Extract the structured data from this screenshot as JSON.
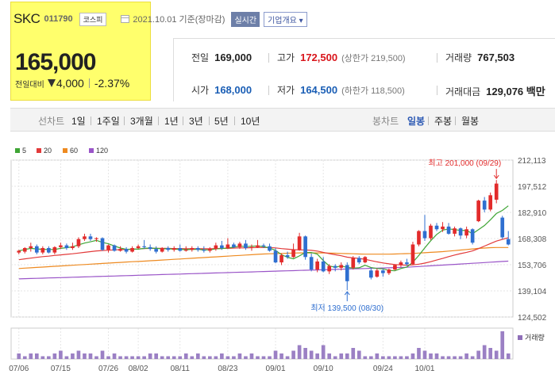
{
  "stock": {
    "name": "SKC",
    "code": "011790",
    "market": "코스피",
    "date": "2021.10.01 기준(장마감)",
    "realtime": "실시간",
    "overview": "기업개요 ▾",
    "price": "165,000",
    "prev_label": "전일대비",
    "change": "4,000",
    "change_pct": "-2.37%"
  },
  "stats": {
    "prev_close": {
      "label": "전일",
      "value": "169,000"
    },
    "high": {
      "label": "고가",
      "value": "172,500",
      "sub": "(상한가 219,500)"
    },
    "volume": {
      "label": "거래량",
      "value": "767,503"
    },
    "open": {
      "label": "시가",
      "value": "168,000"
    },
    "low": {
      "label": "저가",
      "value": "164,500",
      "sub": "(하한가 118,500)"
    },
    "amount": {
      "label": "거래대금",
      "value": "129,076 백만"
    }
  },
  "tabs": {
    "line_label": "선차트",
    "line": [
      "1일",
      "1주일",
      "3개월",
      "1년",
      "3년",
      "5년",
      "10년"
    ],
    "candle_label": "봉차트",
    "candle": [
      "일봉",
      "주봉",
      "월봉"
    ],
    "active_candle": "일봉"
  },
  "legend": [
    {
      "label": "5",
      "color": "#3fa535"
    },
    {
      "label": "20",
      "color": "#e23a3a"
    },
    {
      "label": "60",
      "color": "#ee8a20"
    },
    {
      "label": "120",
      "color": "#9a55c8"
    }
  ],
  "colors": {
    "up": "#e22b2b",
    "down": "#2f6fd0"
  },
  "annotations": {
    "high": "최고 201,000 (09/29)",
    "low": "최저 139,500 (08/30)",
    "volume_label": "거래량"
  },
  "chart_data": {
    "type": "candlestick",
    "ylim": [
      124502,
      212113
    ],
    "yticks": [
      "212,113",
      "197,512",
      "182,910",
      "168,308",
      "153,706",
      "139,104",
      "124,502"
    ],
    "xticks": [
      "07/06",
      "07/15",
      "07/26",
      "08/02",
      "08/11",
      "08/23",
      "09/01",
      "09/10",
      "09/24",
      "10/01"
    ],
    "candles": [
      {
        "o": 160500,
        "c": 161500,
        "h": 162000,
        "l": 159500
      },
      {
        "o": 161000,
        "c": 163000,
        "h": 163500,
        "l": 160000
      },
      {
        "o": 163000,
        "c": 164000,
        "h": 166000,
        "l": 161000
      },
      {
        "o": 164000,
        "c": 160500,
        "h": 165000,
        "l": 159500
      },
      {
        "o": 160500,
        "c": 163000,
        "h": 164000,
        "l": 159500
      },
      {
        "o": 163000,
        "c": 160500,
        "h": 164000,
        "l": 160000
      },
      {
        "o": 160500,
        "c": 163500,
        "h": 164000,
        "l": 159500
      },
      {
        "o": 163500,
        "c": 164500,
        "h": 166000,
        "l": 162500
      },
      {
        "o": 164500,
        "c": 163000,
        "h": 165500,
        "l": 162000
      },
      {
        "o": 163000,
        "c": 164000,
        "h": 166000,
        "l": 162000
      },
      {
        "o": 164000,
        "c": 168000,
        "h": 169000,
        "l": 163000
      },
      {
        "o": 168000,
        "c": 169500,
        "h": 171000,
        "l": 167000
      },
      {
        "o": 169500,
        "c": 168000,
        "h": 171000,
        "l": 167000
      },
      {
        "o": 168000,
        "c": 168500,
        "h": 169000,
        "l": 166500
      },
      {
        "o": 168500,
        "c": 162000,
        "h": 169000,
        "l": 161500
      },
      {
        "o": 162000,
        "c": 164500,
        "h": 165000,
        "l": 160500
      },
      {
        "o": 164500,
        "c": 161500,
        "h": 165000,
        "l": 161000
      },
      {
        "o": 161500,
        "c": 162500,
        "h": 164000,
        "l": 161000
      },
      {
        "o": 162500,
        "c": 161000,
        "h": 163500,
        "l": 160000
      },
      {
        "o": 161000,
        "c": 163000,
        "h": 164000,
        "l": 160500
      },
      {
        "o": 163000,
        "c": 164000,
        "h": 165000,
        "l": 162500
      },
      {
        "o": 164000,
        "c": 163500,
        "h": 167500,
        "l": 162500
      },
      {
        "o": 163500,
        "c": 162500,
        "h": 165000,
        "l": 161500
      },
      {
        "o": 162500,
        "c": 161000,
        "h": 164000,
        "l": 160000
      },
      {
        "o": 161000,
        "c": 163000,
        "h": 163500,
        "l": 160500
      },
      {
        "o": 163000,
        "c": 162000,
        "h": 164000,
        "l": 161000
      },
      {
        "o": 162000,
        "c": 163000,
        "h": 164000,
        "l": 161000
      },
      {
        "o": 163000,
        "c": 161500,
        "h": 165000,
        "l": 161000
      },
      {
        "o": 161500,
        "c": 162000,
        "h": 164000,
        "l": 161000
      },
      {
        "o": 162000,
        "c": 163000,
        "h": 164000,
        "l": 161000
      },
      {
        "o": 163000,
        "c": 162000,
        "h": 164000,
        "l": 161000
      },
      {
        "o": 162000,
        "c": 161500,
        "h": 164000,
        "l": 160500
      },
      {
        "o": 161500,
        "c": 162500,
        "h": 163500,
        "l": 160500
      },
      {
        "o": 162500,
        "c": 164500,
        "h": 166000,
        "l": 161500
      },
      {
        "o": 164500,
        "c": 163000,
        "h": 167000,
        "l": 162000
      },
      {
        "o": 163000,
        "c": 165000,
        "h": 168500,
        "l": 162500
      },
      {
        "o": 165000,
        "c": 163500,
        "h": 166000,
        "l": 163000
      },
      {
        "o": 163500,
        "c": 165500,
        "h": 166500,
        "l": 162500
      },
      {
        "o": 165500,
        "c": 163000,
        "h": 167500,
        "l": 162000
      },
      {
        "o": 163000,
        "c": 163500,
        "h": 165000,
        "l": 161500
      },
      {
        "o": 163500,
        "c": 164500,
        "h": 167500,
        "l": 163000
      },
      {
        "o": 164500,
        "c": 164000,
        "h": 165500,
        "l": 163000
      },
      {
        "o": 164000,
        "c": 161500,
        "h": 165500,
        "l": 161000
      },
      {
        "o": 161500,
        "c": 155000,
        "h": 163000,
        "l": 154500
      },
      {
        "o": 155000,
        "c": 159000,
        "h": 160000,
        "l": 153500
      },
      {
        "o": 159000,
        "c": 158000,
        "h": 161000,
        "l": 157000
      },
      {
        "o": 158000,
        "c": 162000,
        "h": 165500,
        "l": 157500
      },
      {
        "o": 162000,
        "c": 169500,
        "h": 171500,
        "l": 161500
      },
      {
        "o": 169500,
        "c": 158000,
        "h": 170000,
        "l": 156500
      },
      {
        "o": 158000,
        "c": 151000,
        "h": 160000,
        "l": 150000
      },
      {
        "o": 151000,
        "c": 155500,
        "h": 157000,
        "l": 149500
      },
      {
        "o": 155500,
        "c": 150000,
        "h": 158000,
        "l": 149500
      },
      {
        "o": 150000,
        "c": 153000,
        "h": 154000,
        "l": 148500
      },
      {
        "o": 153000,
        "c": 152000,
        "h": 154000,
        "l": 150000
      },
      {
        "o": 152000,
        "c": 153500,
        "h": 155000,
        "l": 150500
      },
      {
        "o": 153500,
        "c": 144500,
        "h": 155000,
        "l": 139500
      },
      {
        "o": 152000,
        "c": 157500,
        "h": 158500,
        "l": 151000
      },
      {
        "o": 157500,
        "c": 155000,
        "h": 158500,
        "l": 154000
      },
      {
        "o": 155000,
        "c": 158000,
        "h": 158500,
        "l": 154500
      },
      {
        "o": 150500,
        "c": 146500,
        "h": 152000,
        "l": 145500
      },
      {
        "o": 147000,
        "c": 150500,
        "h": 151500,
        "l": 146500
      },
      {
        "o": 150500,
        "c": 149000,
        "h": 151500,
        "l": 147000
      },
      {
        "o": 149000,
        "c": 151000,
        "h": 151500,
        "l": 148000
      },
      {
        "o": 151000,
        "c": 153500,
        "h": 154000,
        "l": 150500
      },
      {
        "o": 153500,
        "c": 155000,
        "h": 156000,
        "l": 152500
      },
      {
        "o": 155000,
        "c": 154000,
        "h": 157000,
        "l": 153000
      },
      {
        "o": 154000,
        "c": 165000,
        "h": 166500,
        "l": 153500
      },
      {
        "o": 165000,
        "c": 172500,
        "h": 173000,
        "l": 164000
      },
      {
        "o": 172500,
        "c": 168500,
        "h": 181500,
        "l": 167000
      },
      {
        "o": 168500,
        "c": 175500,
        "h": 176500,
        "l": 167500
      },
      {
        "o": 175500,
        "c": 173500,
        "h": 177000,
        "l": 172500
      },
      {
        "o": 173500,
        "c": 175000,
        "h": 177500,
        "l": 172000
      },
      {
        "o": 175000,
        "c": 171000,
        "h": 177000,
        "l": 170500
      },
      {
        "o": 171000,
        "c": 174000,
        "h": 175000,
        "l": 169500
      },
      {
        "o": 174000,
        "c": 170000,
        "h": 174500,
        "l": 168000
      },
      {
        "o": 170000,
        "c": 173500,
        "h": 175000,
        "l": 168500
      },
      {
        "o": 173500,
        "c": 166000,
        "h": 174000,
        "l": 165000
      },
      {
        "o": 178000,
        "c": 189500,
        "h": 190000,
        "l": 177500
      },
      {
        "o": 189500,
        "c": 184500,
        "h": 191500,
        "l": 183000
      },
      {
        "o": 184500,
        "c": 192500,
        "h": 194000,
        "l": 183500
      },
      {
        "o": 190000,
        "c": 199000,
        "h": 201000,
        "l": 188000
      },
      {
        "o": 180000,
        "c": 169000,
        "h": 181000,
        "l": 168000
      },
      {
        "o": 168000,
        "c": 165000,
        "h": 172500,
        "l": 164500
      }
    ],
    "ma5": [
      161500,
      162200,
      162800,
      162500,
      162300,
      162200,
      162200,
      162800,
      163200,
      163700,
      164800,
      165800,
      166500,
      167300,
      166200,
      165400,
      164200,
      163000,
      162300,
      162400,
      162400,
      162800,
      163000,
      162800,
      162600,
      162600,
      162400,
      162300,
      162100,
      162300,
      162300,
      162000,
      162000,
      162600,
      162700,
      163100,
      163500,
      164200,
      163800,
      164000,
      164200,
      163800,
      163000,
      161700,
      159300,
      157800,
      157000,
      158600,
      160500,
      160500,
      159600,
      156000,
      153000,
      152300,
      153000,
      152200,
      151800,
      152000,
      153400,
      152100,
      151600,
      151400,
      150500,
      150300,
      151600,
      152400,
      155100,
      158900,
      163100,
      167100,
      170600,
      173000,
      173700,
      173300,
      172800,
      172900,
      171000,
      173300,
      175600,
      178800,
      182300,
      184000,
      186600
    ],
    "ma20": [
      156500,
      157000,
      157400,
      157800,
      158200,
      158500,
      158900,
      159200,
      159500,
      159800,
      160200,
      160600,
      161000,
      161400,
      161600,
      161800,
      162000,
      162100,
      162200,
      162300,
      162500,
      162700,
      162800,
      162800,
      162800,
      162800,
      162700,
      162700,
      162600,
      162600,
      162600,
      162600,
      162600,
      162700,
      162800,
      162800,
      163000,
      163100,
      163100,
      163200,
      163300,
      163300,
      163300,
      163100,
      162700,
      162400,
      162100,
      162000,
      162000,
      161700,
      161300,
      160600,
      159900,
      159300,
      158700,
      157900,
      157500,
      157200,
      156700,
      156000,
      155300,
      154700,
      154200,
      153800,
      153600,
      153400,
      153600,
      154000,
      154600,
      155400,
      156300,
      157200,
      158200,
      159100,
      159900,
      160600,
      161400,
      162700,
      164100,
      165500,
      166900,
      167800,
      168800
    ],
    "ma60": [
      151600,
      151800,
      152000,
      152200,
      152400,
      152600,
      152800,
      153000,
      153200,
      153400,
      153600,
      153800,
      154000,
      154200,
      154400,
      154600,
      154800,
      155000,
      155200,
      155400,
      155500,
      155700,
      155900,
      156100,
      156300,
      156500,
      156700,
      156900,
      157100,
      157300,
      157500,
      157700,
      157900,
      158100,
      158300,
      158500,
      158700,
      158900,
      159100,
      159300,
      159500,
      159700,
      159800,
      159900,
      160000,
      160100,
      160200,
      160300,
      160300,
      160300,
      160300,
      160300,
      160200,
      160100,
      160000,
      159900,
      159800,
      159700,
      159600,
      159600,
      159600,
      159600,
      159600,
      159700,
      159800,
      159900,
      160000,
      160200,
      160400,
      160600,
      160800,
      161000,
      161300,
      161600,
      161900,
      162200,
      162500,
      162800,
      163000,
      163200,
      163300,
      163300,
      163300
    ],
    "ma120": [
      145800,
      145900,
      146000,
      146100,
      146200,
      146300,
      146400,
      146500,
      146600,
      146700,
      146800,
      146900,
      147000,
      147100,
      147200,
      147300,
      147400,
      147500,
      147600,
      147700,
      147800,
      147900,
      148000,
      148100,
      148200,
      148300,
      148400,
      148500,
      148600,
      148700,
      148800,
      148900,
      149000,
      149100,
      149200,
      149300,
      149400,
      149500,
      149600,
      149700,
      149800,
      149900,
      150000,
      150100,
      150200,
      150300,
      150400,
      150500,
      150600,
      150700,
      150800,
      150900,
      151000,
      151100,
      151200,
      151300,
      151400,
      151500,
      151600,
      151700,
      151800,
      151900,
      152000,
      152100,
      152200,
      152300,
      152500,
      152700,
      152900,
      153100,
      153300,
      153500,
      153700,
      153900,
      154100,
      154300,
      154500,
      154700,
      154900,
      155100,
      155300,
      155500,
      155700
    ],
    "volume": [
      2,
      1,
      2,
      2,
      1,
      1,
      2,
      3,
      1,
      2,
      3,
      2,
      2,
      1,
      3,
      1,
      2,
      1,
      1,
      1,
      1,
      1,
      2,
      2,
      1,
      1,
      1,
      1,
      2,
      1,
      2,
      1,
      1,
      1,
      2,
      1,
      1,
      2,
      1,
      2,
      1,
      1,
      1,
      3,
      2,
      1,
      3,
      5,
      4,
      3,
      2,
      5,
      2,
      1,
      2,
      2,
      4,
      3,
      1,
      1,
      2,
      1,
      1,
      1,
      1,
      1,
      2,
      4,
      3,
      2,
      2,
      1,
      1,
      1,
      1,
      2,
      1,
      3,
      5,
      4,
      3,
      10,
      2
    ]
  }
}
